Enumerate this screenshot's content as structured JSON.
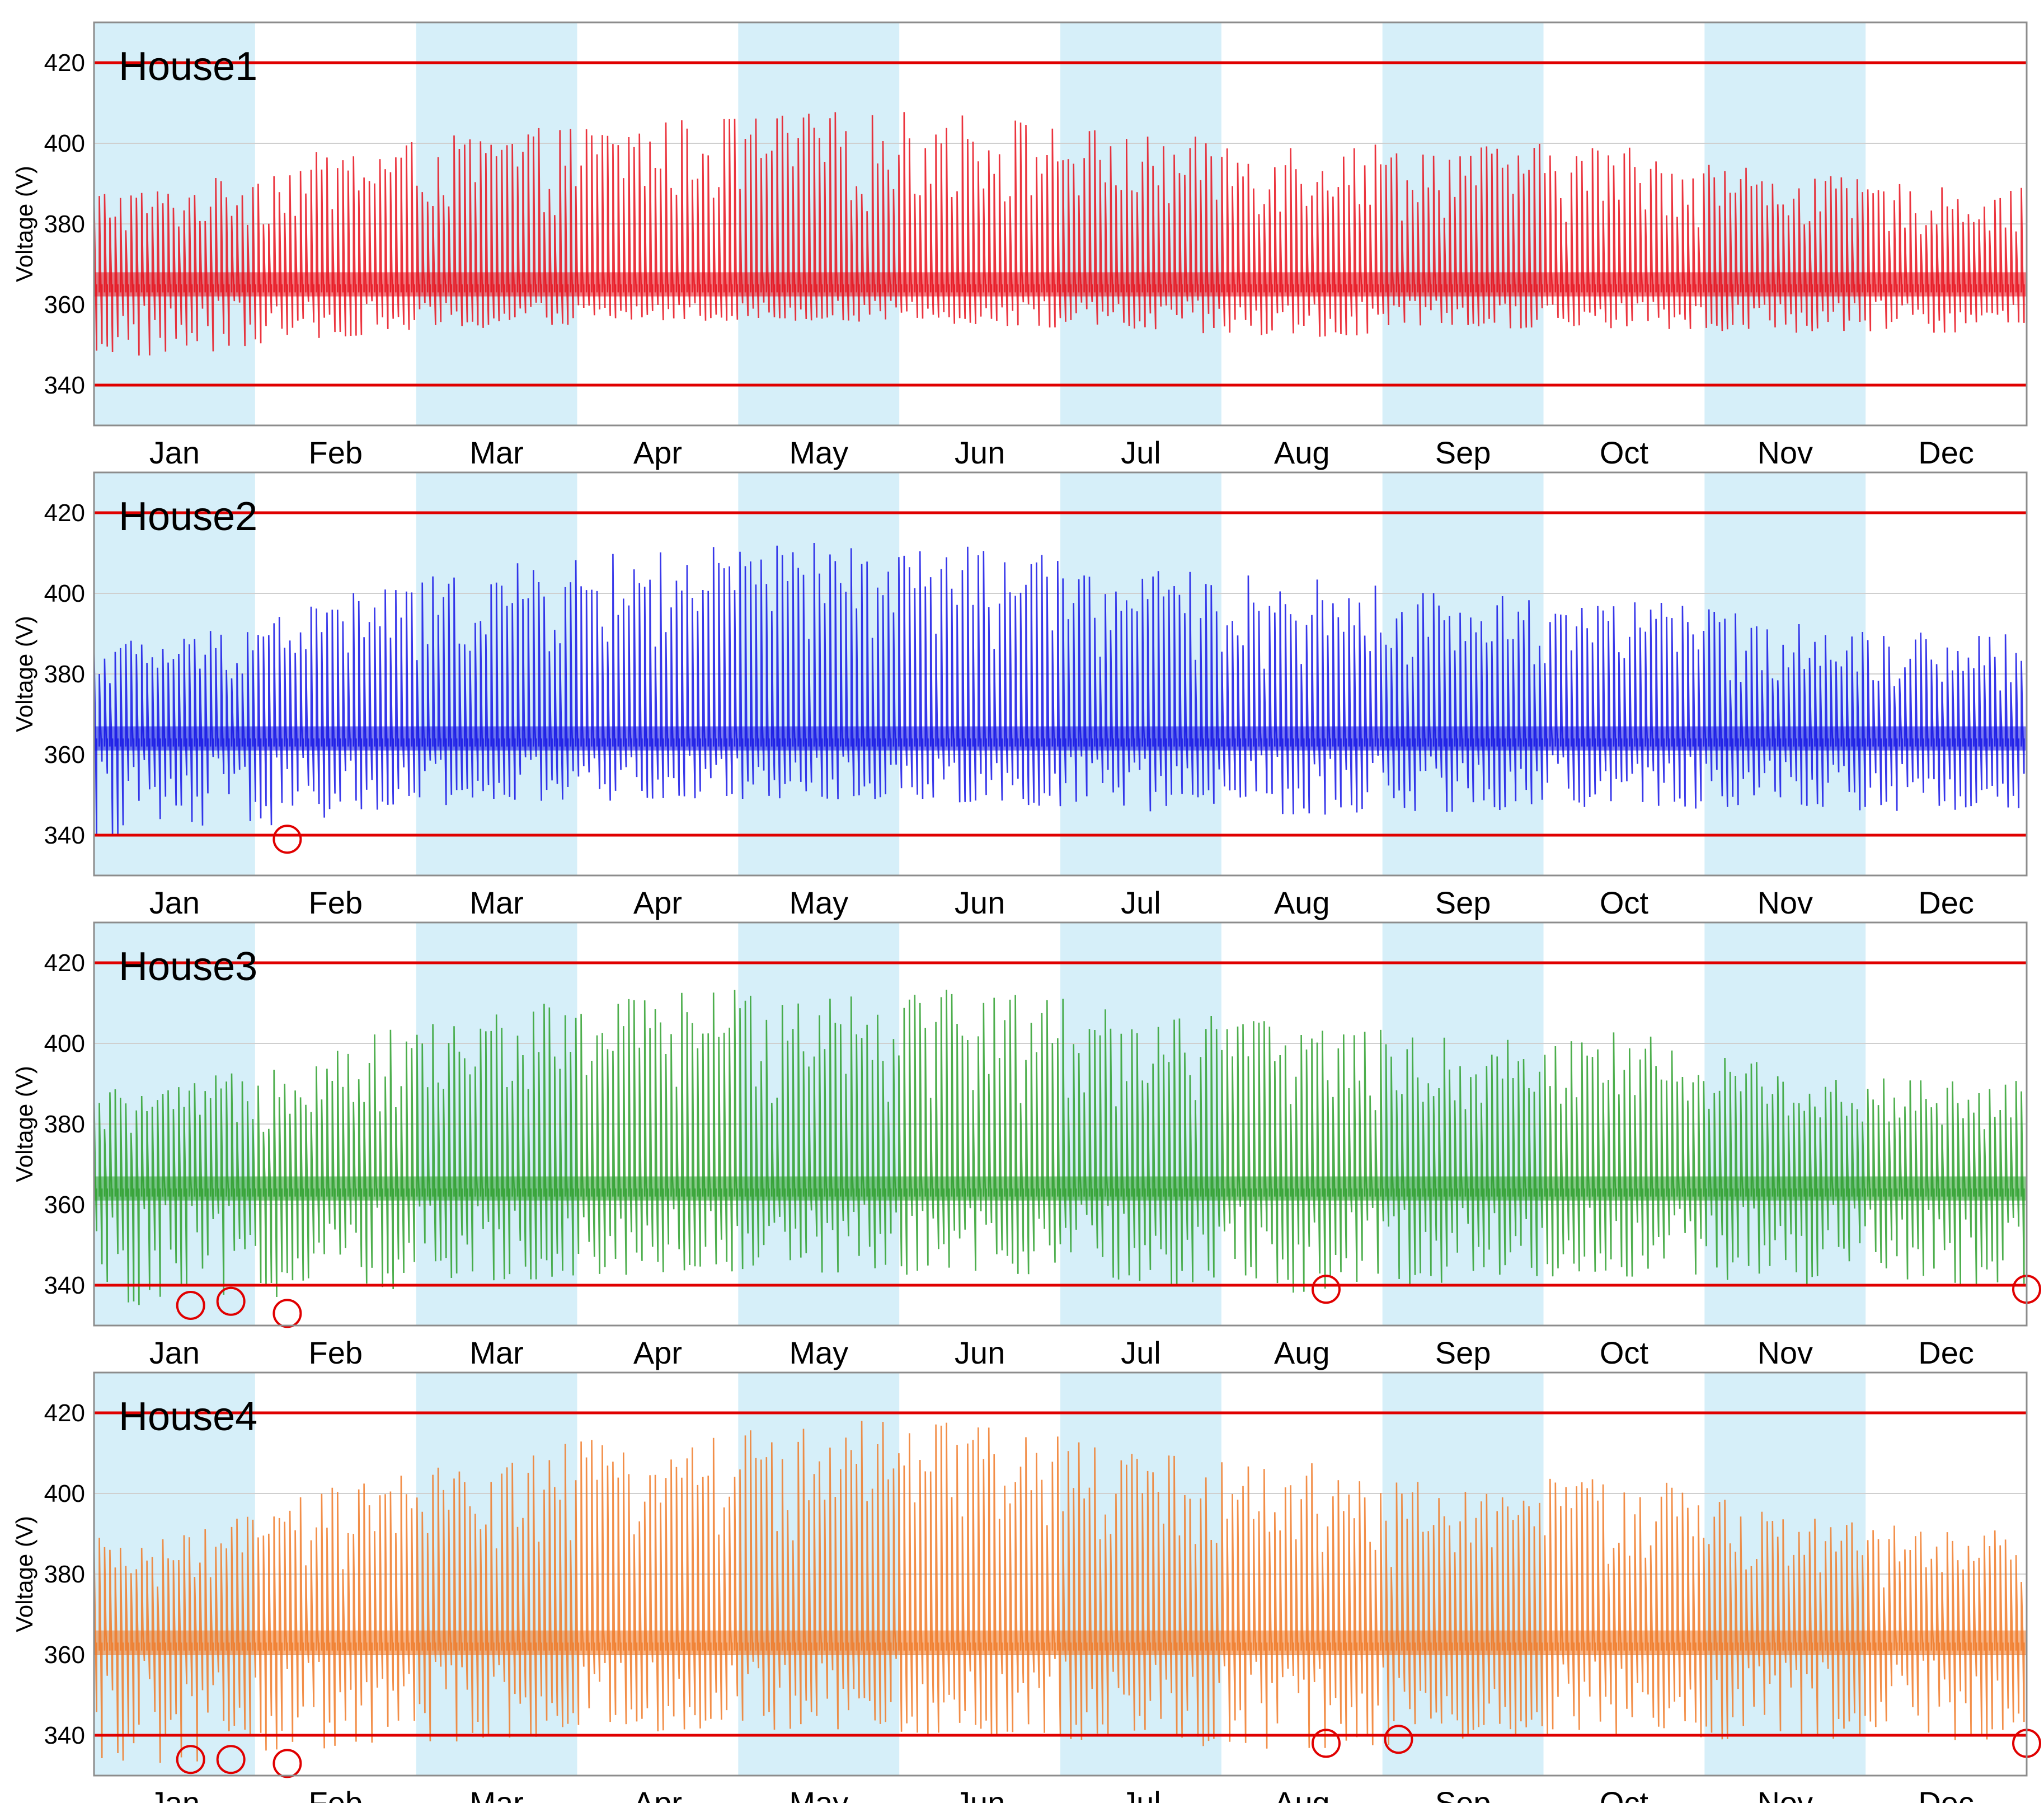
{
  "chart_data": [
    {
      "type": "line",
      "title": "House1",
      "ylabel": "Voltage (V)",
      "xlabel": "",
      "months": [
        "Jan",
        "Feb",
        "Mar",
        "Apr",
        "May",
        "Jun",
        "Jul",
        "Aug",
        "Sep",
        "Oct",
        "Nov",
        "Dec"
      ],
      "yticks": [
        340,
        360,
        380,
        400,
        420
      ],
      "ylim": [
        330,
        430
      ],
      "limits": [
        340,
        420
      ],
      "limit_color": "#e00000",
      "series": [
        {
          "color": "#e8101c",
          "monthly_peak_max": [
            389,
            399,
            403,
            406,
            408,
            408,
            402,
            401,
            400,
            400,
            393,
            389
          ],
          "monthly_trough_min": [
            347,
            352,
            354,
            356,
            356,
            355,
            353,
            351,
            354,
            354,
            353,
            353
          ],
          "baseline": 365
        }
      ],
      "violations": []
    },
    {
      "type": "line",
      "title": "House2",
      "ylabel": "Voltage (V)",
      "xlabel": "",
      "months": [
        "Jan",
        "Feb",
        "Mar",
        "Apr",
        "May",
        "Jun",
        "Jul",
        "Aug",
        "Sep",
        "Oct",
        "Nov",
        "Dec"
      ],
      "yticks": [
        340,
        360,
        380,
        400,
        420
      ],
      "ylim": [
        330,
        430
      ],
      "limits": [
        340,
        420
      ],
      "limit_color": "#e00000",
      "series": [
        {
          "color": "#1414e6",
          "monthly_peak_max": [
            389,
            400,
            407,
            411,
            413,
            412,
            406,
            404,
            400,
            400,
            393,
            390
          ],
          "monthly_trough_min": [
            340,
            344,
            347,
            349,
            349,
            348,
            346,
            344,
            346,
            347,
            346,
            346
          ],
          "baseline": 364
        }
      ],
      "violations": [
        {
          "month": 1.2,
          "value": 339
        }
      ]
    },
    {
      "type": "line",
      "title": "House3",
      "ylabel": "Voltage (V)",
      "xlabel": "",
      "months": [
        "Jan",
        "Feb",
        "Mar",
        "Apr",
        "May",
        "Jun",
        "Jul",
        "Aug",
        "Sep",
        "Oct",
        "Nov",
        "Dec"
      ],
      "yticks": [
        340,
        360,
        380,
        400,
        420
      ],
      "ylim": [
        330,
        430
      ],
      "limits": [
        340,
        420
      ],
      "limit_color": "#e00000",
      "series": [
        {
          "color": "#2ea02e",
          "monthly_peak_max": [
            389,
            401,
            409,
            413,
            416,
            415,
            409,
            406,
            401,
            404,
            394,
            391
          ],
          "monthly_trough_min": [
            335,
            338,
            341,
            343,
            343,
            342,
            340,
            338,
            341,
            342,
            340,
            340
          ],
          "baseline": 364
        }
      ],
      "violations": [
        {
          "month": 0.6,
          "value": 335
        },
        {
          "month": 0.85,
          "value": 336
        },
        {
          "month": 1.2,
          "value": 333
        },
        {
          "month": 7.65,
          "value": 339
        },
        {
          "month": 12.0,
          "value": 339
        }
      ]
    },
    {
      "type": "line",
      "title": "House4",
      "ylabel": "Voltage (V)",
      "xlabel": "",
      "months": [
        "Jan",
        "Feb",
        "Mar",
        "Apr",
        "May",
        "Jun",
        "Jul",
        "Aug",
        "Sep",
        "Oct",
        "Nov",
        "Dec"
      ],
      "yticks": [
        340,
        360,
        380,
        400,
        420
      ],
      "ylim": [
        330,
        430
      ],
      "limits": [
        340,
        420
      ],
      "limit_color": "#e00000",
      "series": [
        {
          "color": "#f07a28",
          "monthly_peak_max": [
            389,
            402,
            410,
            416,
            418,
            418,
            411,
            408,
            402,
            406,
            395,
            391
          ],
          "monthly_trough_min": [
            333,
            337,
            339,
            341,
            341,
            340,
            338,
            336,
            339,
            340,
            338,
            338
          ],
          "baseline": 363
        }
      ],
      "violations": [
        {
          "month": 0.6,
          "value": 334
        },
        {
          "month": 0.85,
          "value": 334
        },
        {
          "month": 1.2,
          "value": 333
        },
        {
          "month": 7.65,
          "value": 338
        },
        {
          "month": 8.1,
          "value": 339
        },
        {
          "month": 12.0,
          "value": 338
        }
      ]
    }
  ],
  "colors": {
    "band": "#d6eff9",
    "grid": "#cfcfcf",
    "frame": "#8c8c8c"
  }
}
